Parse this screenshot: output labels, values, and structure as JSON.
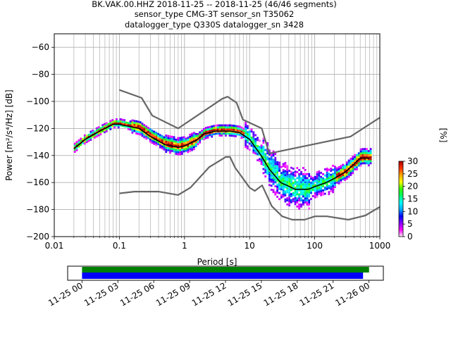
{
  "title_lines": [
    "BK.VAK.00.HHZ   2018-11-25 -- 2018-11-25  (46/46 segments)",
    "sensor_type CMG-3T sensor_sn T35062",
    "datalogger_type Q330S datalogger_sn 3428"
  ],
  "chart_data": [
    {
      "type": "heatmap",
      "subtype": "probabilistic power spectral density",
      "xlabel": "Period [s]",
      "ylabel": "Power [m²/s⁴/Hz] [dB]",
      "xscale": "log",
      "xlim": [
        0.01,
        1000
      ],
      "ylim": [
        -200,
        -50
      ],
      "xticks": [
        0.01,
        0.1,
        1,
        10,
        100,
        1000
      ],
      "xtick_labels": [
        "0.01",
        "0.1",
        "1",
        "10",
        "100",
        "1000"
      ],
      "yticks": [
        -200,
        -180,
        -160,
        -140,
        -120,
        -100,
        -80,
        -60
      ],
      "ytick_labels": [
        "−200",
        "−180",
        "−160",
        "−140",
        "−120",
        "−100",
        "−80",
        "−60"
      ],
      "grid": true,
      "colorbar": {
        "label": "[%]",
        "range": [
          0,
          30
        ],
        "ticks": [
          0,
          5,
          10,
          15,
          20,
          25,
          30
        ],
        "tick_labels": [
          "0",
          "5",
          "10",
          "15",
          "20",
          "25",
          "30"
        ],
        "colormap": [
          "#ffffff",
          "#ff00ff",
          "#8a00ff",
          "#0000ff",
          "#00aaff",
          "#00ffff",
          "#00ff66",
          "#33ff00",
          "#ffff00",
          "#ffaa00",
          "#ff3300",
          "#aa0000"
        ]
      },
      "series": [
        {
          "role": "mean",
          "color": "#000000",
          "x": [
            0.02,
            0.03,
            0.05,
            0.08,
            0.1,
            0.2,
            0.3,
            0.5,
            0.8,
            1,
            1.5,
            2,
            3,
            5,
            7,
            10,
            15,
            20,
            30,
            50,
            80,
            100,
            150,
            200,
            300,
            500,
            700
          ],
          "y": [
            -135,
            -128,
            -122,
            -117,
            -117,
            -120,
            -126,
            -132,
            -134,
            -133,
            -129,
            -124,
            -122,
            -122,
            -123,
            -128,
            -140,
            -150,
            -160,
            -165,
            -165,
            -163,
            -160,
            -157,
            -152,
            -142,
            -142
          ]
        },
        {
          "role": "high noise model",
          "color": "#666666",
          "x": [
            0.1,
            0.22,
            0.32,
            0.8,
            3.8,
            4.6,
            6.3,
            7.9,
            15.4,
            20,
            354.8,
            1000
          ],
          "y": [
            -91.5,
            -97.4,
            -110.5,
            -120,
            -98,
            -96.5,
            -101,
            -113.5,
            -120,
            -138.5,
            -126,
            -112
          ]
        },
        {
          "role": "low noise model",
          "color": "#666666",
          "x": [
            0.1,
            0.17,
            0.4,
            0.8,
            1.24,
            2.4,
            4.3,
            5,
            6,
            10,
            12,
            15.6,
            21.9,
            31.6,
            45,
            70,
            101,
            154,
            328,
            600,
            1000
          ],
          "y": [
            -168,
            -166.7,
            -166.7,
            -169.2,
            -163.7,
            -148.6,
            -141.1,
            -141.1,
            -149,
            -163.8,
            -166.2,
            -162.1,
            -177.5,
            -185,
            -187.5,
            -187.5,
            -185,
            -185,
            -187.5,
            -184.4,
            -178
          ]
        }
      ]
    },
    {
      "type": "bar",
      "subtype": "data coverage timeline",
      "xticks": [
        "11-25 00",
        "11-25 03",
        "11-25 06",
        "11-25 09",
        "11-25 12",
        "11-25 15",
        "11-25 18",
        "11-25 21",
        "11-26 00"
      ],
      "xlim_hours": [
        -1.2,
        25.2
      ],
      "series": [
        {
          "role": "data available",
          "color": "#008000",
          "start_hour": 0,
          "end_hour": 24.0
        },
        {
          "role": "psd segments used",
          "color": "#0000ff",
          "start_hour": 0,
          "end_hour": 23.5
        }
      ]
    }
  ]
}
